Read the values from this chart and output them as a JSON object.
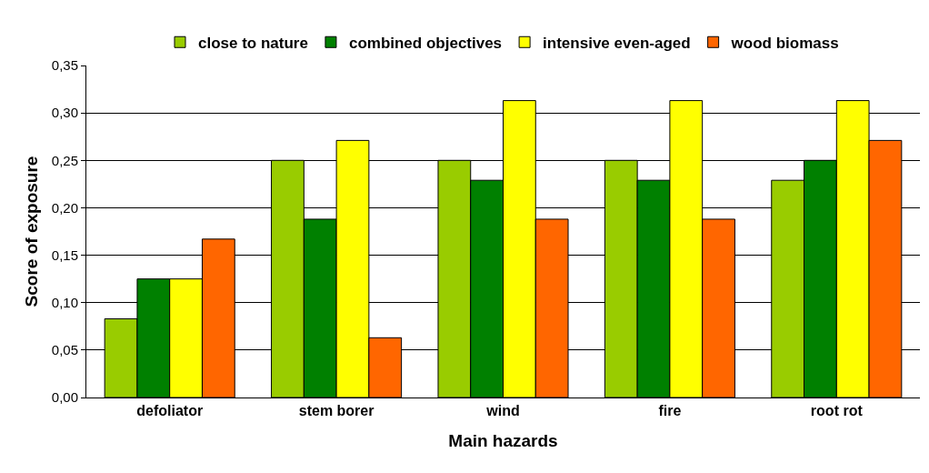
{
  "chart_data": {
    "type": "bar",
    "xlabel": "Main hazards",
    "ylabel": "Score of exposure",
    "categories": [
      "defoliator",
      "stem borer",
      "wind",
      "fire",
      "root rot"
    ],
    "series": [
      {
        "name": "close to nature",
        "color": "#99cc00",
        "values": [
          0.083,
          0.25,
          0.25,
          0.25,
          0.229
        ]
      },
      {
        "name": "combined objectives",
        "color": "#008000",
        "values": [
          0.125,
          0.188,
          0.229,
          0.229,
          0.25
        ]
      },
      {
        "name": "intensive even-aged",
        "color": "#ffff00",
        "values": [
          0.125,
          0.271,
          0.313,
          0.313,
          0.313
        ]
      },
      {
        "name": "wood biomass",
        "color": "#ff6600",
        "values": [
          0.167,
          0.063,
          0.188,
          0.188,
          0.271
        ]
      }
    ],
    "ylim": [
      0,
      0.35
    ],
    "yticks": [
      {
        "value": 0,
        "label": "0,00"
      },
      {
        "value": 0.05,
        "label": "0,05"
      },
      {
        "value": 0.1,
        "label": "0,10"
      },
      {
        "value": 0.15,
        "label": "0,15"
      },
      {
        "value": 0.2,
        "label": "0,20"
      },
      {
        "value": 0.25,
        "label": "0,25"
      },
      {
        "value": 0.3,
        "label": "0,30"
      },
      {
        "value": 0.35,
        "label": "0,35"
      }
    ],
    "grid": "y",
    "legend": "top"
  }
}
